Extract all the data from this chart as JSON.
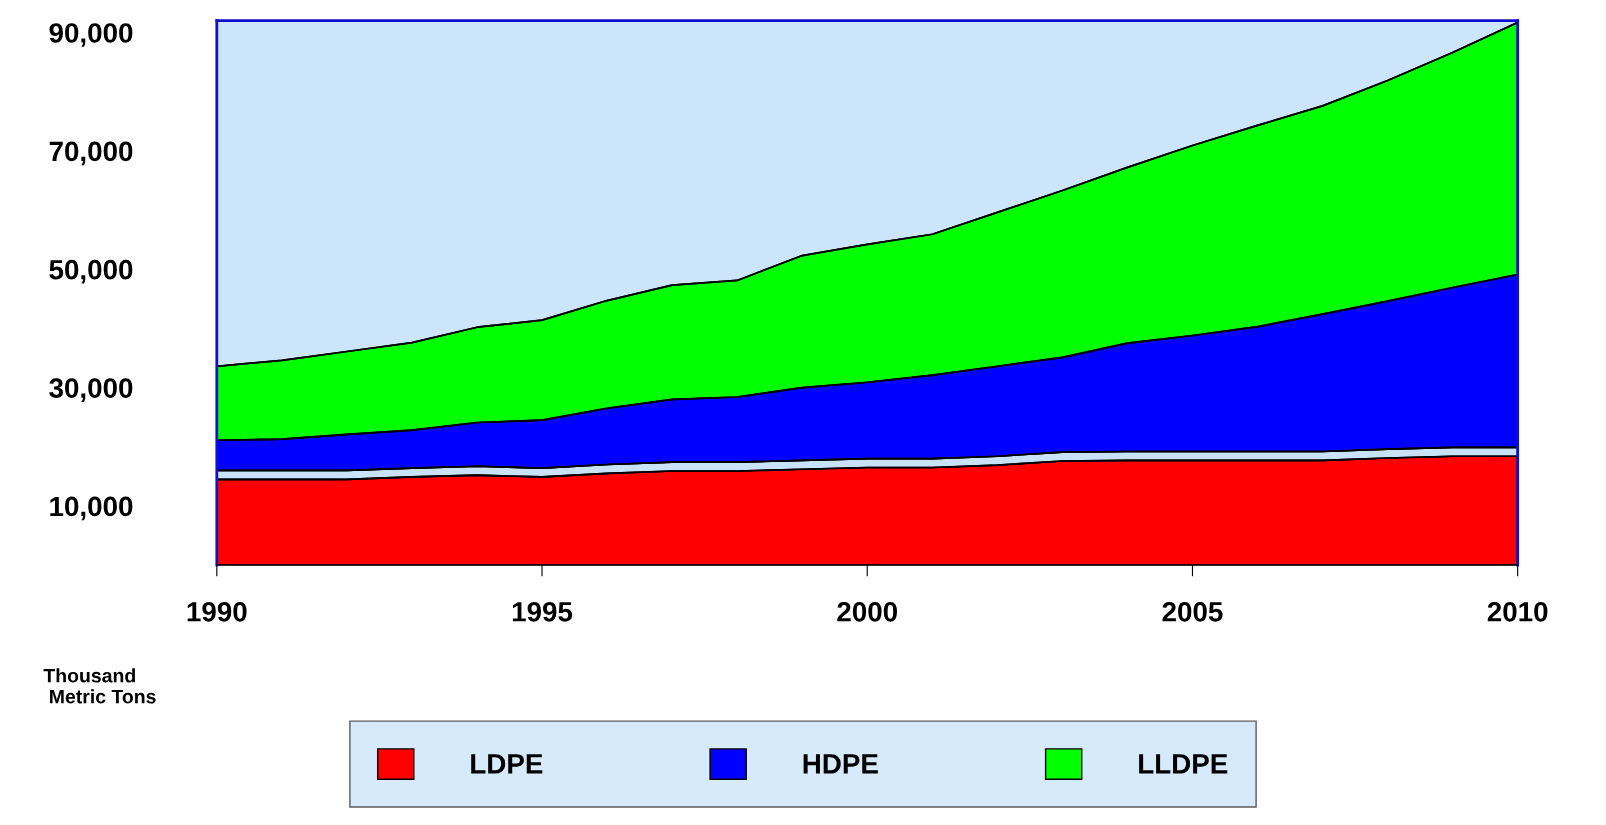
{
  "chart_data": {
    "type": "area",
    "stacked": true,
    "x": [
      1990,
      1991,
      1992,
      1993,
      1994,
      1995,
      1996,
      1997,
      1998,
      1999,
      2000,
      2001,
      2002,
      2003,
      2004,
      2005,
      2006,
      2007,
      2008,
      2009,
      2010
    ],
    "series": [
      {
        "name": "LDPE",
        "color": "#ff0000",
        "values": [
          14500,
          14500,
          14500,
          14900,
          15200,
          14900,
          15500,
          15900,
          15900,
          16200,
          16500,
          16500,
          16900,
          17600,
          17700,
          17700,
          17700,
          17700,
          18100,
          18400,
          18400
        ]
      },
      {
        "color": "#c8e2fa",
        "values": [
          1500,
          1500,
          1500,
          1500,
          1500,
          1500,
          1500,
          1500,
          1500,
          1500,
          1500,
          1500,
          1500,
          1500,
          1500,
          1500,
          1500,
          1500,
          1500,
          1500,
          1500
        ]
      },
      {
        "name": "HDPE",
        "color": "#0000ff",
        "values": [
          5100,
          5300,
          6100,
          6400,
          7400,
          8100,
          9500,
          10600,
          11000,
          12300,
          12900,
          14100,
          15200,
          16000,
          18300,
          19600,
          21100,
          23200,
          25000,
          27000,
          29200
        ]
      },
      {
        "name": "LLDPE",
        "color": "#00ff00",
        "values": [
          12500,
          13300,
          14000,
          14800,
          16100,
          16900,
          18200,
          19300,
          19700,
          22300,
          23300,
          23800,
          26000,
          28200,
          29700,
          32100,
          34000,
          35200,
          37300,
          39700,
          42600
        ]
      }
    ],
    "xlim": [
      1990,
      2010
    ],
    "xticks": [
      1990,
      1995,
      2000,
      2005,
      2010
    ],
    "ylim": [
      0,
      92000
    ],
    "yticks": [
      {
        "value": 10000,
        "label": "10,000"
      },
      {
        "value": 30000,
        "label": "30,000"
      },
      {
        "value": 50000,
        "label": "50,000"
      },
      {
        "value": 70000,
        "label": "70,000"
      },
      {
        "value": 90000,
        "label": "90,000"
      }
    ],
    "annotations": [
      "Thousand\n Metric Tons"
    ],
    "grid": false,
    "legend": "bottom"
  }
}
